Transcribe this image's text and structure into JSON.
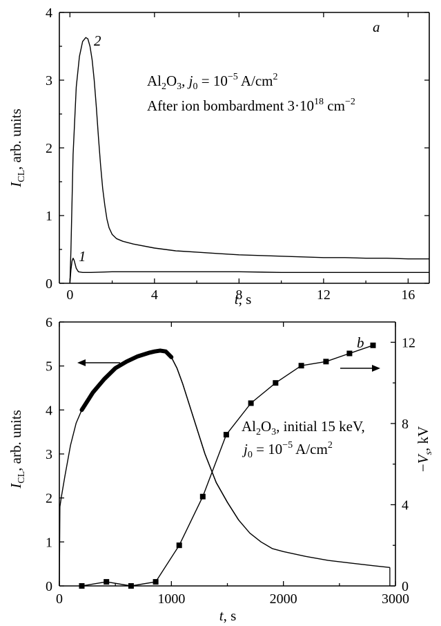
{
  "chart_data": [
    {
      "type": "line",
      "panel_letter": "a",
      "xlabel_var": "t",
      "xlabel_unit": ", s",
      "ylabel_var": "I",
      "ylabel_sub": "CL",
      "ylabel_rest": ", arb. units",
      "xlim": [
        -0.5,
        17
      ],
      "ylim": [
        0,
        4
      ],
      "xticks": [
        0,
        4,
        8,
        12,
        16
      ],
      "yticks": [
        0,
        1,
        2,
        3,
        4
      ],
      "annotation_line1": {
        "pre": "Al",
        "sub1": "2",
        "mid": "O",
        "sub2": "3",
        "sep": ", ",
        "var": "j",
        "var_sub": "0",
        "eq": " = 10",
        "exp": "−5",
        "unit": " A/cm",
        "unit_sup": "2"
      },
      "annotation_line2": {
        "text": "After ion bombardment  3·10",
        "exp": "18",
        "unit": " cm",
        "unit_sup": "−2"
      },
      "series": [
        {
          "name": "2",
          "x": [
            0,
            0.05,
            0.15,
            0.3,
            0.45,
            0.6,
            0.75,
            0.85,
            0.95,
            1.05,
            1.15,
            1.25,
            1.35,
            1.45,
            1.55,
            1.65,
            1.75,
            1.85,
            2.0,
            2.2,
            2.5,
            3.0,
            4.0,
            5.0,
            6.0,
            7.0,
            8.0,
            9.0,
            10.0,
            11.0,
            12.0,
            13.0,
            14.0,
            15.0,
            16.0,
            17.0
          ],
          "y": [
            0,
            0.5,
            1.9,
            2.9,
            3.35,
            3.57,
            3.63,
            3.61,
            3.5,
            3.3,
            3.0,
            2.6,
            2.15,
            1.75,
            1.4,
            1.15,
            0.95,
            0.82,
            0.72,
            0.66,
            0.62,
            0.58,
            0.52,
            0.48,
            0.46,
            0.44,
            0.42,
            0.41,
            0.4,
            0.39,
            0.38,
            0.38,
            0.37,
            0.37,
            0.36,
            0.36
          ]
        },
        {
          "name": "1",
          "x": [
            0,
            0.05,
            0.1,
            0.15,
            0.2,
            0.3,
            0.4,
            0.6,
            1.0,
            2.0,
            4.0,
            6.0,
            8.0,
            10.0,
            12.0,
            14.0,
            16.0,
            17.0
          ],
          "y": [
            0,
            0.2,
            0.33,
            0.37,
            0.34,
            0.22,
            0.17,
            0.16,
            0.16,
            0.17,
            0.17,
            0.17,
            0.17,
            0.16,
            0.16,
            0.16,
            0.16,
            0.16
          ]
        }
      ]
    },
    {
      "type": "line",
      "panel_letter": "b",
      "xlabel_var": "t",
      "xlabel_unit": ", s",
      "ylabel_var": "I",
      "ylabel_sub": "CL",
      "ylabel_rest": ", arb. units",
      "y2label_pre": "−",
      "y2label_var": "V",
      "y2label_sub": "s",
      "y2label_rest": ", kV",
      "xlim": [
        0,
        3000
      ],
      "ylim": [
        0,
        6
      ],
      "y2lim": [
        0,
        13
      ],
      "xticks": [
        0,
        1000,
        2000,
        3000
      ],
      "yticks": [
        0,
        1,
        2,
        3,
        4,
        5,
        6
      ],
      "y2ticks": [
        0,
        4,
        8,
        12
      ],
      "annotation_line1": {
        "pre": "Al",
        "sub1": "2",
        "mid": "O",
        "sub2": "3",
        "rest": ", initial 15 keV,"
      },
      "annotation_line2": {
        "var": "j",
        "var_sub": "0",
        "eq": " = 10",
        "exp": "−5",
        "unit": " A/cm",
        "unit_sup": "2"
      },
      "series": [
        {
          "name": "I_CL",
          "axis": "left",
          "x": [
            0,
            5,
            20,
            50,
            100,
            150,
            200,
            250,
            300,
            400,
            500,
            600,
            700,
            800,
            850,
            900,
            950,
            1000,
            1050,
            1100,
            1200,
            1300,
            1400,
            1500,
            1600,
            1700,
            1800,
            1900,
            2000,
            2200,
            2400,
            2600,
            2800,
            2950
          ],
          "y": [
            0,
            1.8,
            2.05,
            2.5,
            3.2,
            3.7,
            4.0,
            4.2,
            4.4,
            4.7,
            4.95,
            5.1,
            5.22,
            5.3,
            5.33,
            5.35,
            5.33,
            5.2,
            4.95,
            4.6,
            3.8,
            3.0,
            2.35,
            1.9,
            1.5,
            1.2,
            1.0,
            0.85,
            0.78,
            0.67,
            0.58,
            0.52,
            0.46,
            0.42
          ]
        },
        {
          "name": "-V_s",
          "axis": "right",
          "marker": "square",
          "x": [
            200,
            420,
            640,
            860,
            1070,
            1280,
            1490,
            1710,
            1930,
            2160,
            2380,
            2590,
            2800
          ],
          "y": [
            0.0,
            0.2,
            0.0,
            0.2,
            2.0,
            4.4,
            7.45,
            9.0,
            10.0,
            10.85,
            11.05,
            11.45,
            11.85
          ]
        }
      ]
    }
  ]
}
